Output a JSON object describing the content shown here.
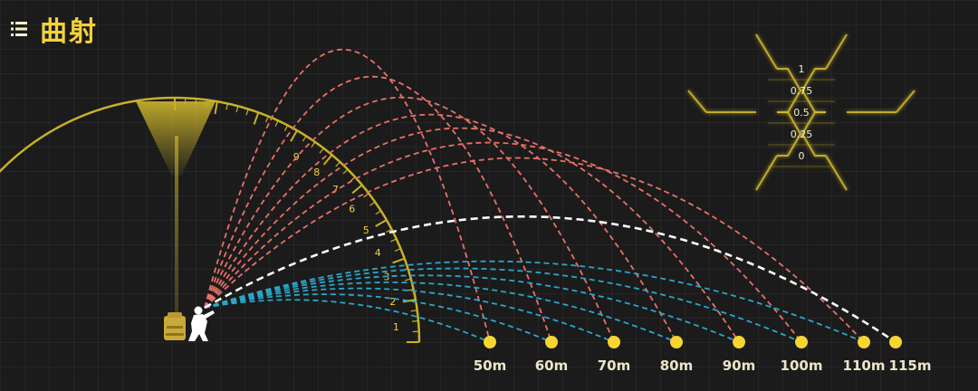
{
  "header": {
    "title": "曲射",
    "menu_icon": "menu-icon"
  },
  "gauge": {
    "ticks": [
      "1",
      "2",
      "3",
      "4",
      "5",
      "6",
      "7",
      "8",
      "9"
    ],
    "color": "#c9b128"
  },
  "level_scale": {
    "labels": [
      "1",
      "0.75",
      "0.5",
      "0.25",
      "0"
    ],
    "color": "#c9b128"
  },
  "targets": {
    "labels": [
      "50m",
      "60m",
      "70m",
      "80m",
      "90m",
      "100m",
      "110m",
      "115m"
    ],
    "dot_color": "#f7d531"
  },
  "trajectories": {
    "high_color": "#e97068",
    "flat_color": "#2aa6c9",
    "max_color": "#ffffff"
  },
  "player": {
    "icon": "crouching-soldier-icon",
    "bag_icon": "backpack-icon"
  }
}
